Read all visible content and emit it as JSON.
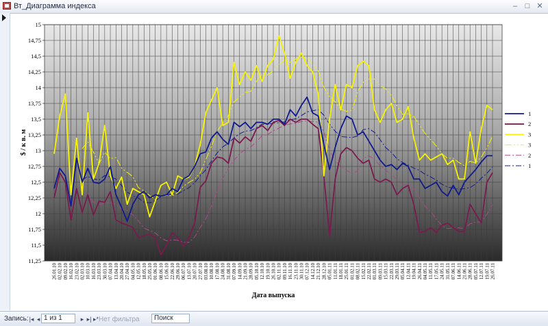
{
  "window": {
    "title": "Вт_Диаграмма индекса",
    "minimize": "–",
    "maximize": "□",
    "close": "✕"
  },
  "chart_data": {
    "type": "line",
    "ylabel": "$ / к в. м",
    "xlabel": "Дата выпуска",
    "ylim": [
      11.25,
      15
    ],
    "yticks": [
      "11,25",
      "11,5",
      "11,75",
      "12",
      "12,25",
      "12,5",
      "12,75",
      "13",
      "13,25",
      "13,5",
      "13,75",
      "14",
      "14,25",
      "14,5",
      "14,75",
      "15"
    ],
    "x_labels": [
      "26.01.10",
      "02.02.10",
      "09.02.10",
      "16.02.10",
      "23.02.10",
      "02.03.10",
      "10.03.10",
      "16.03.10",
      "23.03.10",
      "30.03.10",
      "07.04.10",
      "13.04.10",
      "20.04.10",
      "27.04.10",
      "04.05.10",
      "12.05.10",
      "18.05.10",
      "25.05.10",
      "01.06.10",
      "08.06.10",
      "15.06.10",
      "22.06.10",
      "29.06.10",
      "06.07.10",
      "13.07.10",
      "20.07.10",
      "27.07.10",
      "03.08.10",
      "10.08.10",
      "17.08.10",
      "24.08.10",
      "31.08.10",
      "07.09.10",
      "14.09.10",
      "21.09.10",
      "28.09.10",
      "05.10.10",
      "12.10.10",
      "19.10.10",
      "26.10.10",
      "02.11.10",
      "09.11.10",
      "16.11.10",
      "23.11.10",
      "30.11.10",
      "07.12.10",
      "14.12.10",
      "21.12.10",
      "28.12.10",
      "05.01.11",
      "11.01.11",
      "18.01.11",
      "25.01.11",
      "01.02.11",
      "08.02.11",
      "15.02.11",
      "22.02.11",
      "01.03.11",
      "09.03.11",
      "15.03.11",
      "22.03.11",
      "29.03.11",
      "05.04.11",
      "12.04.11",
      "19.04.11",
      "26.04.11",
      "04.05.11",
      "11.05.11",
      "17.05.11",
      "24.05.11",
      "31.05.11",
      "07.06.11",
      "14.06.11",
      "21.06.11",
      "28.06.11",
      "05.07.11",
      "12.07.11",
      "19.07.11",
      "26.07.11"
    ],
    "series": [
      {
        "name": "1",
        "color": "#101a8c",
        "values": [
          12.4,
          12.72,
          12.6,
          12.12,
          12.88,
          12.5,
          12.72,
          12.5,
          12.48,
          12.55,
          12.75,
          12.3,
          12.1,
          11.88,
          12.15,
          12.3,
          12.35,
          12.25,
          12.3,
          12.28,
          12.3,
          12.4,
          12.35,
          12.55,
          12.6,
          12.75,
          12.95,
          12.98,
          13.2,
          13.3,
          13.18,
          13.1,
          13.45,
          13.38,
          13.45,
          13.35,
          13.45,
          13.45,
          13.42,
          13.5,
          13.5,
          13.42,
          13.65,
          13.55,
          13.72,
          13.85,
          13.6,
          13.55,
          13.1,
          12.7,
          13.05,
          13.35,
          13.55,
          13.5,
          13.25,
          13.3,
          13.15,
          13.0,
          12.85,
          12.75,
          12.78,
          12.7,
          12.8,
          12.75,
          12.55,
          12.55,
          12.4,
          12.45,
          12.5,
          12.35,
          12.28,
          12.45,
          12.3,
          12.5,
          12.6,
          12.7,
          12.82,
          12.92,
          12.92
        ]
      },
      {
        "name": "2",
        "color": "#7a1a4e",
        "values": [
          12.25,
          12.65,
          12.5,
          11.9,
          12.4,
          12.02,
          12.3,
          11.98,
          12.2,
          12.18,
          12.35,
          11.9,
          11.85,
          11.82,
          11.78,
          11.62,
          11.65,
          11.68,
          11.62,
          11.35,
          11.5,
          11.7,
          11.62,
          11.48,
          11.62,
          11.85,
          12.42,
          12.52,
          12.8,
          12.9,
          12.88,
          12.8,
          13.2,
          13.12,
          13.22,
          13.15,
          13.35,
          13.4,
          13.32,
          13.45,
          13.48,
          13.4,
          13.5,
          13.45,
          13.5,
          13.5,
          13.42,
          13.35,
          12.6,
          11.65,
          12.55,
          12.95,
          13.05,
          13.0,
          12.88,
          12.8,
          12.85,
          12.55,
          12.5,
          12.55,
          12.5,
          12.3,
          12.4,
          12.45,
          12.15,
          11.7,
          11.72,
          11.78,
          11.7,
          11.82,
          11.85,
          11.78,
          11.72,
          11.72,
          12.15,
          12.0,
          11.85,
          12.5,
          12.65
        ]
      },
      {
        "name": "3",
        "color": "#f5f300",
        "values": [
          12.95,
          13.55,
          13.9,
          12.3,
          13.2,
          12.3,
          13.6,
          12.55,
          12.8,
          13.4,
          12.6,
          12.4,
          12.58,
          12.15,
          12.4,
          12.35,
          12.3,
          11.95,
          12.2,
          12.45,
          12.5,
          12.3,
          12.6,
          12.55,
          12.58,
          12.75,
          13.1,
          13.6,
          13.8,
          14.0,
          13.4,
          13.45,
          14.4,
          14.05,
          14.25,
          14.12,
          14.35,
          14.1,
          14.35,
          14.45,
          14.82,
          14.55,
          14.15,
          14.4,
          14.55,
          14.35,
          14.25,
          13.9,
          12.6,
          13.5,
          14.05,
          13.65,
          14.05,
          14.0,
          14.35,
          14.42,
          14.35,
          13.65,
          13.45,
          13.65,
          13.75,
          13.45,
          13.5,
          13.7,
          13.2,
          12.85,
          12.95,
          12.85,
          12.9,
          12.95,
          12.78,
          12.85,
          12.55,
          12.55,
          13.3,
          12.8,
          13.35,
          13.72,
          13.65
        ]
      }
    ],
    "trendlines": [
      {
        "name": "3",
        "color": "#f5f300",
        "style": "dash-dot-dot"
      },
      {
        "name": "2",
        "color": "#a84a88",
        "style": "dash-dot"
      },
      {
        "name": "1",
        "color": "#101a8c",
        "style": "dash-dot"
      }
    ],
    "legend_position": "right"
  },
  "statusbar": {
    "record_label": "Запись:",
    "record_value": "1 из 1",
    "first": "|◂",
    "prev": "◂",
    "next": "▸",
    "last": "▸|",
    "new": "▸*",
    "filter_label": "Нет фильтра",
    "search_label": "Поиск"
  }
}
